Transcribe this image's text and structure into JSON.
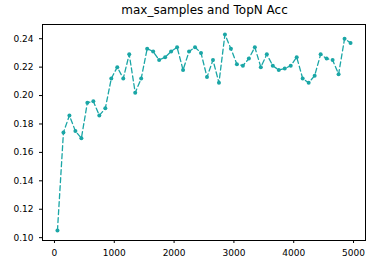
{
  "chart_data": {
    "type": "line",
    "title": "max_samples and TopN Acc",
    "x": [
      50,
      150,
      250,
      350,
      450,
      550,
      650,
      750,
      850,
      950,
      1050,
      1150,
      1250,
      1350,
      1450,
      1550,
      1650,
      1750,
      1850,
      1950,
      2050,
      2150,
      2250,
      2350,
      2450,
      2550,
      2650,
      2750,
      2850,
      2950,
      3050,
      3150,
      3250,
      3350,
      3450,
      3550,
      3650,
      3750,
      3850,
      3950,
      4050,
      4150,
      4250,
      4350,
      4450,
      4550,
      4650,
      4750,
      4850,
      4950
    ],
    "values": [
      0.105,
      0.174,
      0.186,
      0.175,
      0.17,
      0.195,
      0.196,
      0.186,
      0.191,
      0.212,
      0.22,
      0.212,
      0.229,
      0.202,
      0.212,
      0.233,
      0.231,
      0.225,
      0.227,
      0.231,
      0.234,
      0.218,
      0.231,
      0.234,
      0.23,
      0.213,
      0.225,
      0.209,
      0.243,
      0.233,
      0.222,
      0.221,
      0.226,
      0.234,
      0.22,
      0.229,
      0.221,
      0.218,
      0.219,
      0.221,
      0.227,
      0.212,
      0.209,
      0.214,
      0.229,
      0.226,
      0.225,
      0.215,
      0.24,
      0.237
    ],
    "color": "#1aa6a6",
    "marker": "o",
    "line_style": "dashed",
    "xlim": [
      -200,
      5200
    ],
    "xticks": [
      0,
      1000,
      2000,
      3000,
      4000,
      5000
    ],
    "ylim": [
      0.098,
      0.25
    ],
    "yticks": [
      {
        "value": 0.1,
        "label": "0.10"
      },
      {
        "value": 0.12,
        "label": "0.12"
      },
      {
        "value": 0.14,
        "label": "0.14"
      },
      {
        "value": 0.16,
        "label": "0.16"
      },
      {
        "value": 0.18,
        "label": "0.18"
      },
      {
        "value": 0.2,
        "label": "0.20"
      },
      {
        "value": 0.22,
        "label": "0.22"
      },
      {
        "value": 0.24,
        "label": "0.24"
      }
    ],
    "grid": false
  }
}
